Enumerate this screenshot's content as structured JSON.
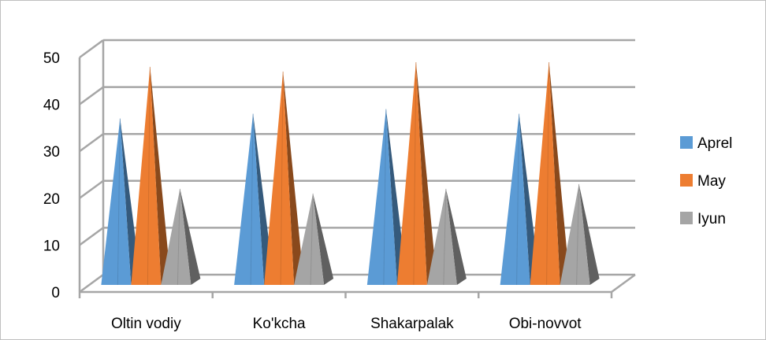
{
  "chart_data": {
    "type": "bar",
    "style": "3d-pyramid",
    "title": "",
    "xlabel": "",
    "ylabel": "",
    "categories": [
      "Oltin vodiy",
      "Ko'kcha",
      "Shakarpalak",
      "Obi-novvot"
    ],
    "series": [
      {
        "name": "Aprel",
        "values": [
          37,
          38,
          39,
          38
        ],
        "color": "#5b9bd5"
      },
      {
        "name": "May",
        "values": [
          48,
          47,
          49,
          49
        ],
        "color": "#ed7d31"
      },
      {
        "name": "Iyun",
        "values": [
          22,
          21,
          22,
          23
        ],
        "color": "#a5a5a5"
      }
    ],
    "ylim": [
      0,
      50
    ],
    "yticks": [
      "0",
      "10",
      "20",
      "30",
      "40",
      "50"
    ],
    "grid": true,
    "legend_position": "right"
  }
}
